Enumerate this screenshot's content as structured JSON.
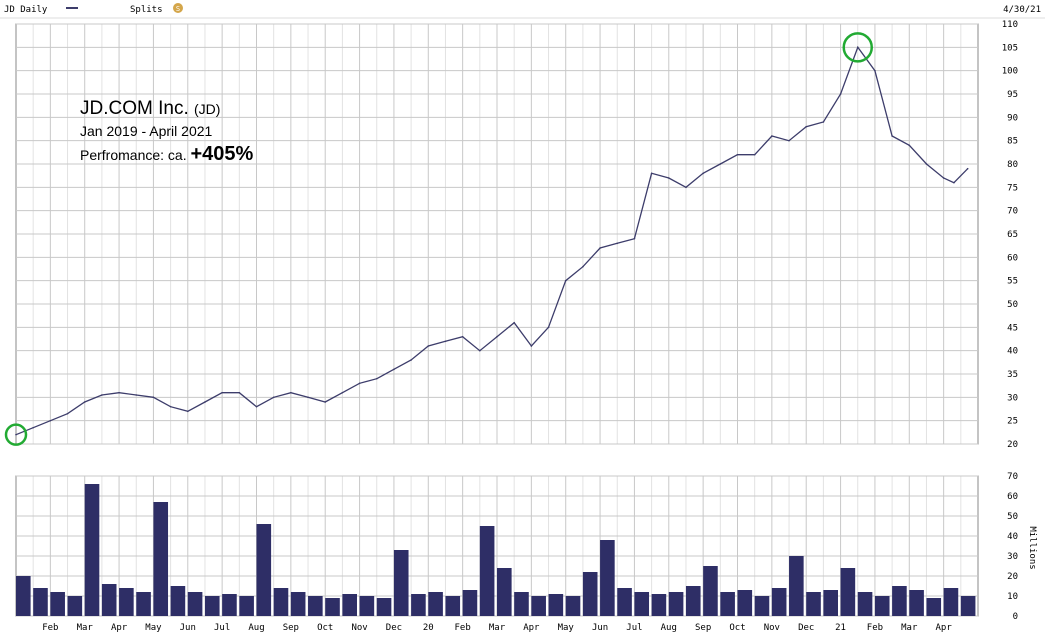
{
  "header": {
    "legend_label": "JD Daily",
    "splits_label": "Splits",
    "splits_badge": "S",
    "date": "4/30/21"
  },
  "overlay": {
    "company": "JD.COM Inc.",
    "ticker": "(JD)",
    "period": "Jan 2019 - April 2021",
    "perf_label": "Perfromance: ca.",
    "perf_value": "+405%"
  },
  "colors": {
    "line": "#3d3d6b",
    "volume": "#2e2e66",
    "grid": "#c8c8c8",
    "marker": "#22aa33",
    "text": "#000000"
  },
  "x_axis": {
    "labels": [
      "Feb",
      "Mar",
      "Apr",
      "May",
      "Jun",
      "Jul",
      "Aug",
      "Sep",
      "Oct",
      "Nov",
      "Dec",
      "20",
      "Feb",
      "Mar",
      "Apr",
      "May",
      "Jun",
      "Jul",
      "Aug",
      "Sep",
      "Oct",
      "Nov",
      "Dec",
      "21",
      "Feb",
      "Mar",
      "Apr"
    ]
  },
  "chart_data": [
    {
      "type": "line",
      "name": "price",
      "x_months": [
        0,
        0.5,
        1,
        1.5,
        2,
        2.5,
        3,
        3.5,
        4,
        4.5,
        5,
        5.5,
        6,
        6.5,
        7,
        7.5,
        8,
        8.5,
        9,
        9.5,
        10,
        10.5,
        11,
        11.5,
        12,
        12.5,
        13,
        13.5,
        14,
        14.5,
        15,
        15.5,
        16,
        16.5,
        17,
        17.5,
        18,
        18.5,
        19,
        19.5,
        20,
        20.5,
        21,
        21.5,
        22,
        22.5,
        23,
        23.5,
        24,
        24.5,
        25,
        25.5,
        26,
        26.5,
        27,
        27.3,
        27.7
      ],
      "y": [
        22,
        23.5,
        25,
        26.5,
        29,
        30.5,
        31,
        30.5,
        30,
        28,
        27,
        29,
        31,
        31,
        28,
        30,
        31,
        30,
        29,
        31,
        33,
        34,
        36,
        38,
        41,
        42,
        43,
        40,
        43,
        46,
        41,
        45,
        55,
        58,
        62,
        63,
        64,
        78,
        77,
        75,
        78,
        80,
        82,
        82,
        86,
        85,
        88,
        89,
        95,
        105,
        100,
        86,
        84,
        80,
        77,
        76,
        79
      ],
      "ylim": [
        20,
        110
      ],
      "yticks": [
        20,
        25,
        30,
        35,
        40,
        45,
        50,
        55,
        60,
        65,
        70,
        75,
        80,
        85,
        90,
        95,
        100,
        105,
        110
      ],
      "xlim": [
        0,
        28
      ],
      "grid": true,
      "annotations": [
        "start marker circle",
        "peak marker circle"
      ]
    },
    {
      "type": "bar",
      "name": "volume",
      "x_months": [
        0,
        0.5,
        1,
        1.5,
        2,
        2.5,
        3,
        3.5,
        4,
        4.5,
        5,
        5.5,
        6,
        6.5,
        7,
        7.5,
        8,
        8.5,
        9,
        9.5,
        10,
        10.5,
        11,
        11.5,
        12,
        12.5,
        13,
        13.5,
        14,
        14.5,
        15,
        15.5,
        16,
        16.5,
        17,
        17.5,
        18,
        18.5,
        19,
        19.5,
        20,
        20.5,
        21,
        21.5,
        22,
        22.5,
        23,
        23.5,
        24,
        24.5,
        25,
        25.5,
        26,
        26.5,
        27,
        27.5
      ],
      "values": [
        20,
        14,
        12,
        10,
        66,
        16,
        14,
        12,
        57,
        15,
        12,
        10,
        11,
        10,
        46,
        14,
        12,
        10,
        9,
        11,
        10,
        9,
        33,
        11,
        12,
        10,
        13,
        45,
        24,
        12,
        10,
        11,
        10,
        22,
        38,
        14,
        12,
        11,
        12,
        15,
        25,
        12,
        13,
        10,
        14,
        30,
        12,
        13,
        24,
        12,
        10,
        15,
        13,
        9,
        14,
        10
      ],
      "ylim": [
        0,
        70
      ],
      "yticks": [
        0,
        10,
        20,
        30,
        40,
        50,
        60,
        70
      ],
      "ylabel": "Millions",
      "grid": true
    }
  ]
}
